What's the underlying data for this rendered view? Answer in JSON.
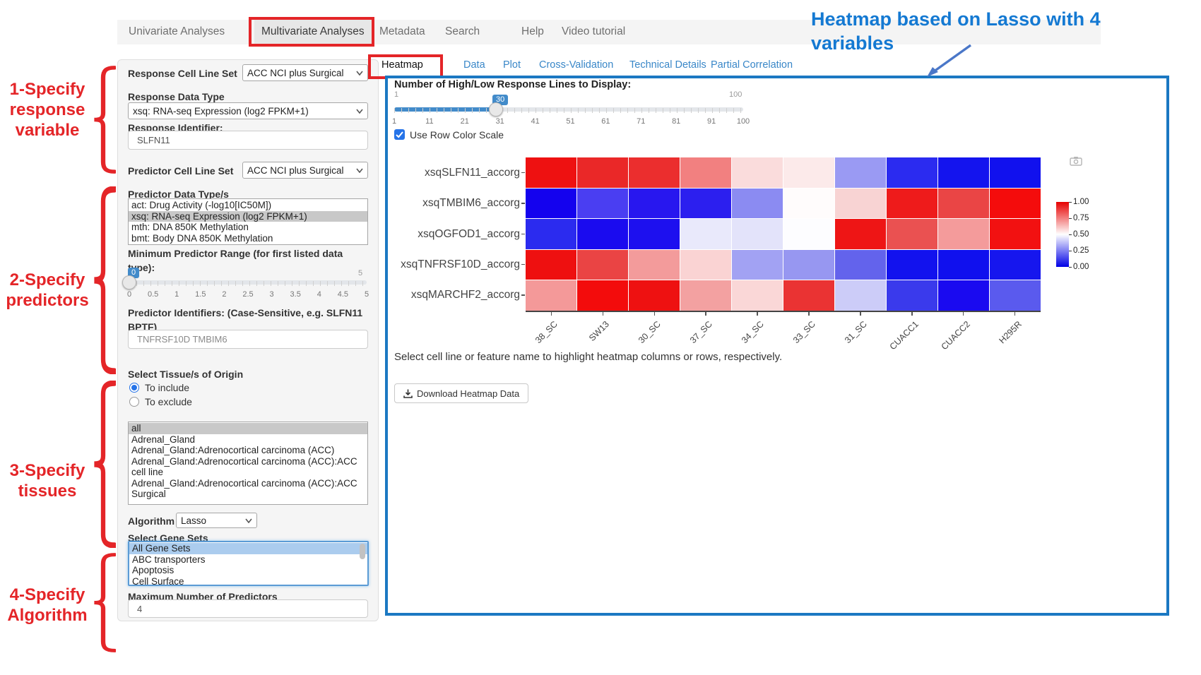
{
  "theme": {
    "annotation_red": "#e42528",
    "annotation_blue": "#1479d2",
    "panel_border_blue": "#1b78c2",
    "slider_blue": "#428bca",
    "link_blue": "#3987c8",
    "selection_blue": "#abccee",
    "selection_gray": "#c8c8c8"
  },
  "nav": {
    "items": [
      "Univariate Analyses",
      "Multivariate Analyses",
      "Metadata",
      "Search",
      "Help",
      "Video tutorial"
    ],
    "active": "Multivariate Analyses"
  },
  "annotations": {
    "heading_line1": "Heatmap based on Lasso with 4",
    "heading_line2": "variables",
    "steps": [
      "1-Specify\nresponse\nvariable",
      "2-Specify\npredictors",
      "3-Specify\ntissues",
      "4-Specify\nAlgorithm"
    ]
  },
  "sidebar": {
    "response_cell_line_set": {
      "label": "Response Cell Line Set",
      "value": "ACC NCI plus Surgical"
    },
    "response_data_type": {
      "label": "Response Data Type",
      "value": "xsq: RNA-seq Expression (log2 FPKM+1)"
    },
    "response_identifier": {
      "label": "Response Identifier:",
      "value": "SLFN11"
    },
    "predictor_cell_line_set": {
      "label": "Predictor Cell Line Set",
      "value": "ACC NCI plus Surgical"
    },
    "predictor_data_types": {
      "label": "Predictor Data Type/s",
      "selected_index": 1,
      "options": [
        "act: Drug Activity (-log10[IC50M])",
        "xsq: RNA-seq Expression (log2 FPKM+1)",
        "mth: DNA 850K Methylation",
        "bmt: Body DNA 850K Methylation"
      ]
    },
    "min_predictor_range": {
      "label": "Minimum Predictor Range (for first listed data type):",
      "value": "0",
      "min": "0",
      "max": "5",
      "ticks": [
        "0",
        "0.5",
        "1",
        "1.5",
        "2",
        "2.5",
        "3",
        "3.5",
        "4",
        "4.5",
        "5"
      ]
    },
    "predictor_identifiers": {
      "label": "Predictor Identifiers: (Case-Sensitive, e.g. SLFN11 BPTF)",
      "value": "TNFRSF10D TMBIM6"
    },
    "tissues": {
      "label": "Select Tissue/s of Origin",
      "radio_include": "To include",
      "radio_exclude": "To exclude",
      "include_selected": true,
      "selected_index": 0,
      "options": [
        "all",
        "Adrenal_Gland",
        "Adrenal_Gland:Adrenocortical carcinoma (ACC)",
        "Adrenal_Gland:Adrenocortical carcinoma (ACC):ACC cell line",
        "Adrenal_Gland:Adrenocortical carcinoma (ACC):ACC Surgical"
      ]
    },
    "algorithm": {
      "label": "Algorithm",
      "value": "Lasso"
    },
    "gene_sets": {
      "label": "Select Gene Sets",
      "selected_index": 0,
      "options": [
        "All Gene Sets",
        "ABC transporters",
        "Apoptosis",
        "Cell Surface"
      ]
    },
    "max_predictors": {
      "label": "Maximum Number of Predictors",
      "value": "4"
    }
  },
  "tabs": {
    "items": [
      "Heatmap",
      "Data",
      "Plot",
      "Cross-Validation",
      "Technical Details",
      "Partial Correlation"
    ],
    "active": "Heatmap"
  },
  "panel": {
    "slider": {
      "label": "Number of High/Low Response Lines to Display:",
      "value": "30",
      "min": "1",
      "max": "100",
      "ticks": [
        "1",
        "11",
        "21",
        "31",
        "41",
        "51",
        "61",
        "71",
        "81",
        "91",
        "100"
      ]
    },
    "row_color_scale_label": "Use Row Color Scale",
    "checkbox_checked": true,
    "hint": "Select cell line or feature name to highlight heatmap columns or rows, respectively.",
    "download_button": "Download Heatmap Data"
  },
  "chart_data": {
    "type": "heatmap",
    "title": "",
    "row_scaled": true,
    "rows": [
      "xsqSLFN11_accorg",
      "xsqTMBIM6_accorg",
      "xsqOGFOD1_accorg",
      "xsqTNFRSF10D_accorg",
      "xsqMARCHF2_accorg"
    ],
    "columns": [
      "38_SC",
      "SW13",
      "30_SC",
      "37_SC",
      "34_SC",
      "33_SC",
      "31_SC",
      "CUACC1",
      "CUACC2",
      "H295R"
    ],
    "values": [
      [
        0.97,
        0.9,
        0.89,
        0.72,
        0.56,
        0.53,
        0.31,
        0.06,
        0.01,
        0.0
      ],
      [
        0.0,
        0.13,
        0.06,
        0.07,
        0.29,
        0.5,
        0.6,
        0.93,
        0.82,
        1.0
      ],
      [
        0.07,
        0.0,
        0.01,
        0.46,
        0.44,
        0.5,
        0.95,
        0.79,
        0.69,
        0.97
      ],
      [
        0.97,
        0.82,
        0.69,
        0.58,
        0.3,
        0.27,
        0.18,
        0.02,
        0.0,
        0.03
      ],
      [
        0.68,
        1.0,
        0.97,
        0.67,
        0.58,
        0.87,
        0.38,
        0.11,
        0.0,
        0.16
      ]
    ],
    "cell_colors": [
      [
        "#ee1111",
        "#ea2828",
        "#eb2e2e",
        "#f28080",
        "#fadcdc",
        "#fceaea",
        "#9a9af3",
        "#2b2bf0",
        "#1414ee",
        "#1111ee"
      ],
      [
        "#1402ee",
        "#4a3ef2",
        "#2817ef",
        "#2c1fef",
        "#8b8bf2",
        "#fffcfc",
        "#f8d3d3",
        "#ee1b1b",
        "#ea4545",
        "#f40c0c"
      ],
      [
        "#2b2bef",
        "#1a0bef",
        "#1d10ef",
        "#e9e9fb",
        "#e3e3fa",
        "#fdfdff",
        "#ee1515",
        "#ea5151",
        "#f49b9b",
        "#f21111"
      ],
      [
        "#ee1010",
        "#ea4444",
        "#f39b9b",
        "#fad3d3",
        "#a2a2f3",
        "#9797f1",
        "#6363ec",
        "#1212ee",
        "#1010ee",
        "#1616ee"
      ],
      [
        "#f49999",
        "#f30c0c",
        "#ee1111",
        "#f3a1a1",
        "#fad7d7",
        "#ea3333",
        "#ccccf8",
        "#3a3aec",
        "#1a0af0",
        "#5a5aee"
      ]
    ],
    "colorbar": {
      "ticks": [
        "1.00",
        "0.75",
        "0.50",
        "0.25",
        "0.00"
      ],
      "top_color": "#e60000",
      "mid_color": "#ffffff",
      "bottom_color": "#0000e6"
    },
    "legend_position": "right",
    "grid": false
  }
}
